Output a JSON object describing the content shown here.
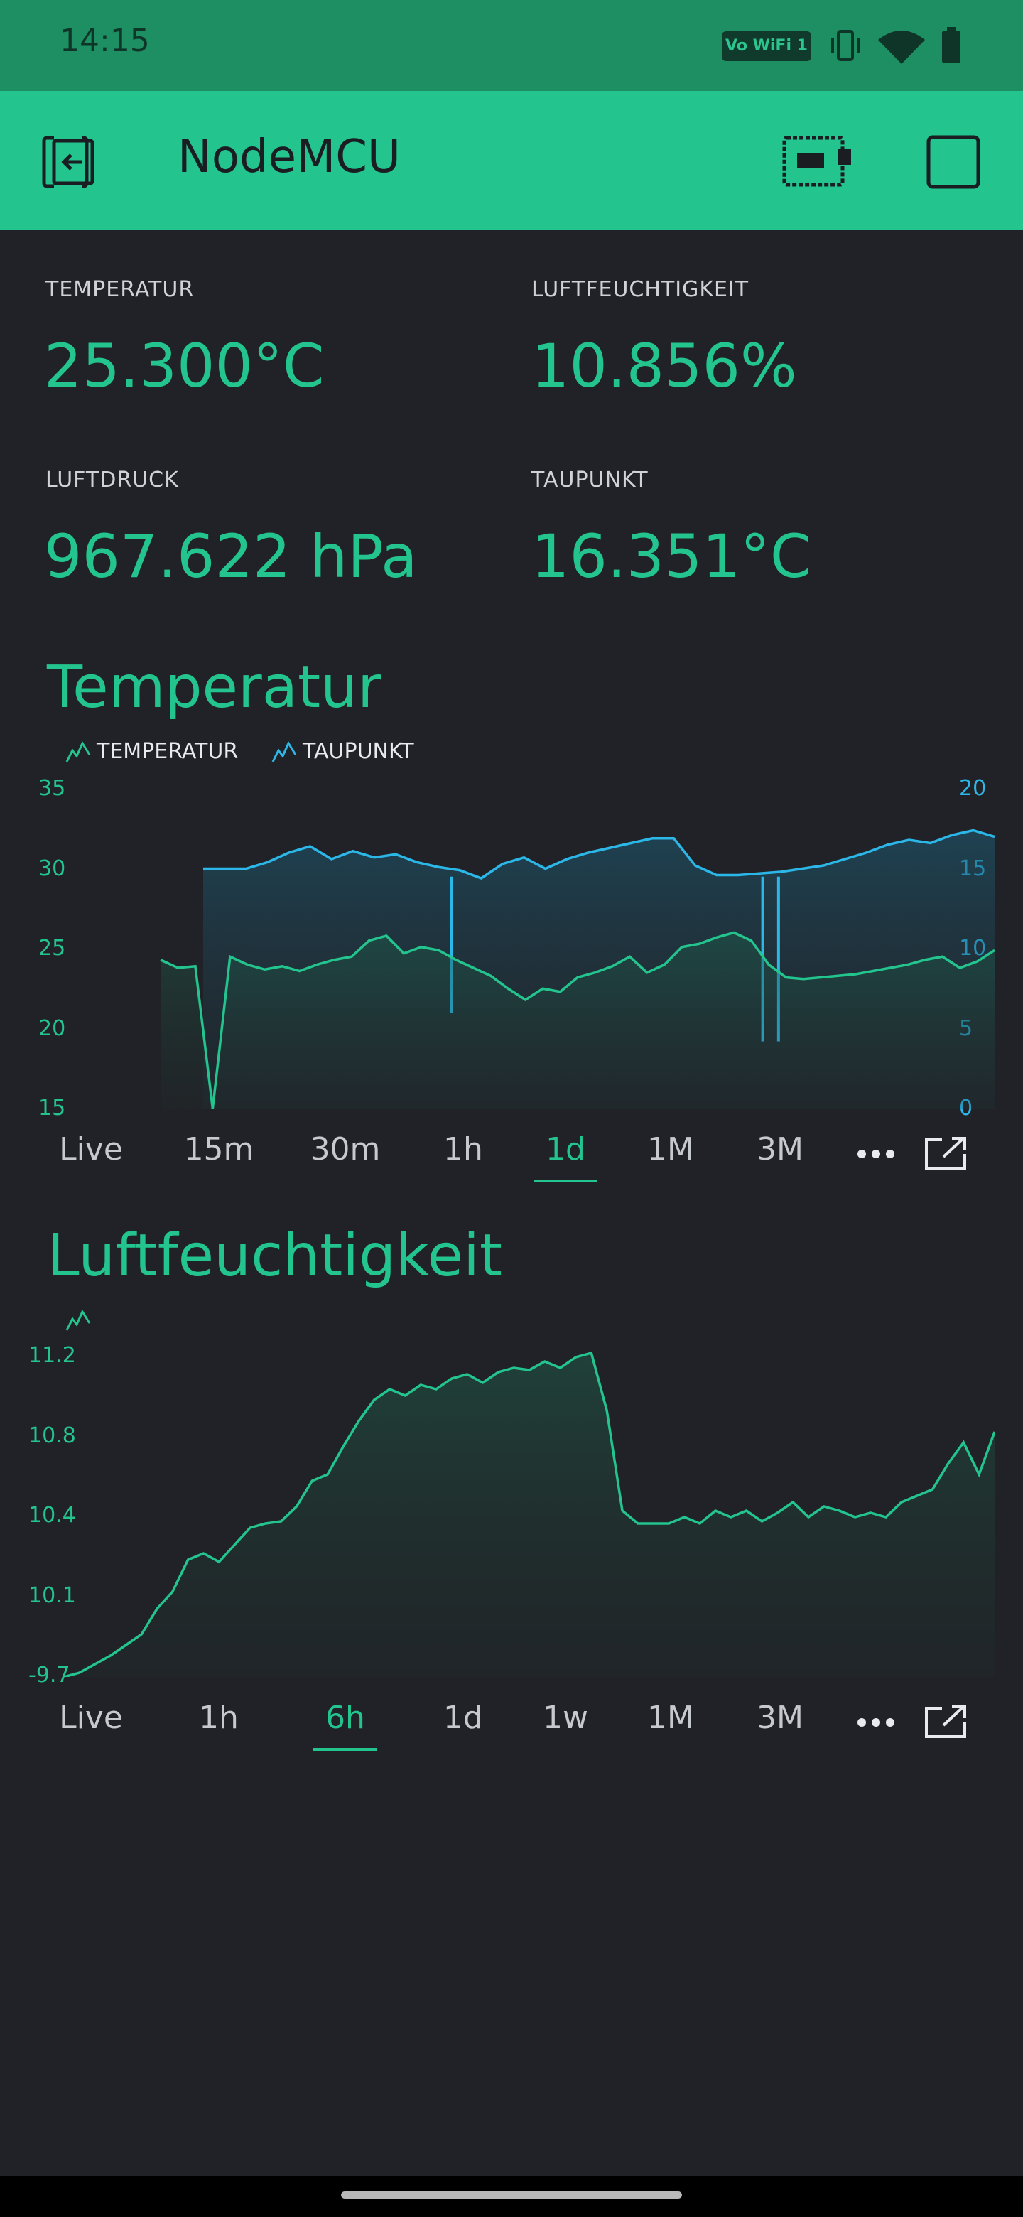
{
  "status_bar": {
    "time": "14:15",
    "wifi_badge": "Vo WiFi 1",
    "icons": [
      "vibrate-icon",
      "wifi-icon",
      "battery-icon"
    ]
  },
  "app_bar": {
    "title": "NodeMCU",
    "icons": [
      "back-exit-icon",
      "device-board-icon",
      "square-icon"
    ]
  },
  "widgets": {
    "temperatur": {
      "label": "TEMPERATUR",
      "value": "25.300°C"
    },
    "luftfeuchtigkeit": {
      "label": "LUFTFEUCHTIGKEIT",
      "value": "10.856%"
    },
    "luftdruck": {
      "label": "LUFTDRUCK",
      "value": "967.622 hPa"
    },
    "taupunkt": {
      "label": "TAUPUNKT",
      "value": "16.351°C"
    }
  },
  "colors": {
    "accent": "#23c48e",
    "blue": "#2bb7e8",
    "background": "#212227",
    "appbar": "#23c48e",
    "statusbar": "#1e8f63"
  },
  "chart_data": [
    {
      "type": "line",
      "title": "Temperatur",
      "legend_placement": "top-left",
      "left_axis": {
        "ticks": [
          "35",
          "30",
          "25",
          "20",
          "15"
        ],
        "range": [
          15,
          35
        ]
      },
      "right_axis": {
        "ticks": [
          "20",
          "15",
          "10",
          "5",
          "0"
        ],
        "range": [
          0,
          20
        ]
      },
      "series": [
        {
          "name": "TEMPERATUR",
          "color": "#23c48e",
          "axis": "left",
          "values": [
            24.3,
            23.8,
            23.9,
            15.0,
            24.5,
            24.0,
            23.7,
            23.9,
            23.6,
            24.0,
            24.3,
            24.5,
            25.5,
            25.8,
            24.7,
            25.1,
            24.9,
            24.3,
            23.8,
            23.3,
            22.5,
            21.8,
            22.5,
            22.3,
            23.2,
            23.5,
            23.9,
            24.5,
            23.5,
            24.0,
            25.1,
            25.3,
            25.7,
            26.0,
            25.5,
            24.0,
            23.2,
            23.1,
            23.2,
            23.3,
            23.4,
            23.6,
            23.8,
            24.0,
            24.3,
            24.5,
            23.8,
            24.2,
            24.9
          ]
        },
        {
          "name": "TAUPUNKT",
          "color": "#2bb7e8",
          "axis": "right",
          "values": [
            15.0,
            15.0,
            15.0,
            15.4,
            16.0,
            16.4,
            15.6,
            16.1,
            15.7,
            15.9,
            15.4,
            15.1,
            14.9,
            14.4,
            15.3,
            15.7,
            15.0,
            15.6,
            16.0,
            16.3,
            16.6,
            16.9,
            16.9,
            15.2,
            14.6,
            14.6,
            14.7,
            14.8,
            15.0,
            15.2,
            15.6,
            16.0,
            16.5,
            16.8,
            16.6,
            17.1,
            17.4,
            17.0
          ]
        }
      ]
    },
    {
      "type": "area",
      "title": "Luftfeuchtigkeit",
      "y_axis": {
        "ticks": [
          "11.2",
          "10.8",
          "10.4",
          "10.1",
          "-9.7"
        ]
      },
      "series": [
        {
          "color": "#23c48e",
          "values": [
            9.7,
            9.72,
            9.76,
            9.8,
            9.85,
            9.9,
            10.02,
            10.1,
            10.25,
            10.28,
            10.24,
            10.32,
            10.4,
            10.42,
            10.43,
            10.5,
            10.62,
            10.65,
            10.78,
            10.9,
            11.0,
            11.05,
            11.02,
            11.07,
            11.05,
            11.1,
            11.12,
            11.08,
            11.13,
            11.15,
            11.14,
            11.18,
            11.15,
            11.2,
            11.22,
            10.95,
            10.48,
            10.42,
            10.42,
            10.42,
            10.45,
            10.42,
            10.48,
            10.45,
            10.48,
            10.43,
            10.47,
            10.52,
            10.45,
            10.5,
            10.48,
            10.45,
            10.47,
            10.45,
            10.52,
            10.55,
            10.58,
            10.7,
            10.8,
            10.65,
            10.85
          ]
        }
      ]
    }
  ],
  "temp_tabs": {
    "items": [
      "Live",
      "15m",
      "30m",
      "1h",
      "1d",
      "1M",
      "3M"
    ],
    "active": "1d",
    "more_icon": "more-dots-icon",
    "expand_icon": "expand-icon"
  },
  "hum_tabs": {
    "items": [
      "Live",
      "1h",
      "6h",
      "1d",
      "1w",
      "1M",
      "3M"
    ],
    "active": "6h",
    "more_icon": "more-dots-icon",
    "expand_icon": "expand-icon"
  }
}
